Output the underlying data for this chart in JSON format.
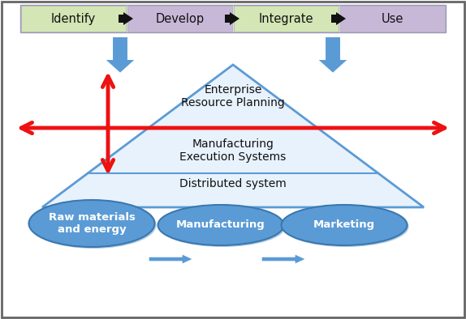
{
  "fig_width": 5.74,
  "fig_height": 3.94,
  "dpi": 100,
  "bg_color": "#ffffff",
  "border_color": "#666666",
  "identify_color": "#d4e6b5",
  "develop_color": "#c8b8d8",
  "integrate_color": "#d4e6b5",
  "use_color": "#c8b8d8",
  "top_bar_bg": "#e0e0ec",
  "top_labels": [
    "Identify",
    "Develop",
    "Integrate",
    "Use"
  ],
  "pyramid_edge": "#5b9bd5",
  "pyramid_fill": "#e8f2fc",
  "level_labels": [
    "Enterprise\nResource Planning",
    "Manufacturing\nExecution Systems",
    "Distributed system"
  ],
  "ellipse_fill": "#5b9bd5",
  "ellipse_edge": "#3a78b0",
  "ellipse_labels": [
    "Raw materials\nand energy",
    "Manufacturing",
    "Marketing"
  ],
  "red_color": "#ee1111",
  "blue_arrow_color": "#5b9bd5"
}
